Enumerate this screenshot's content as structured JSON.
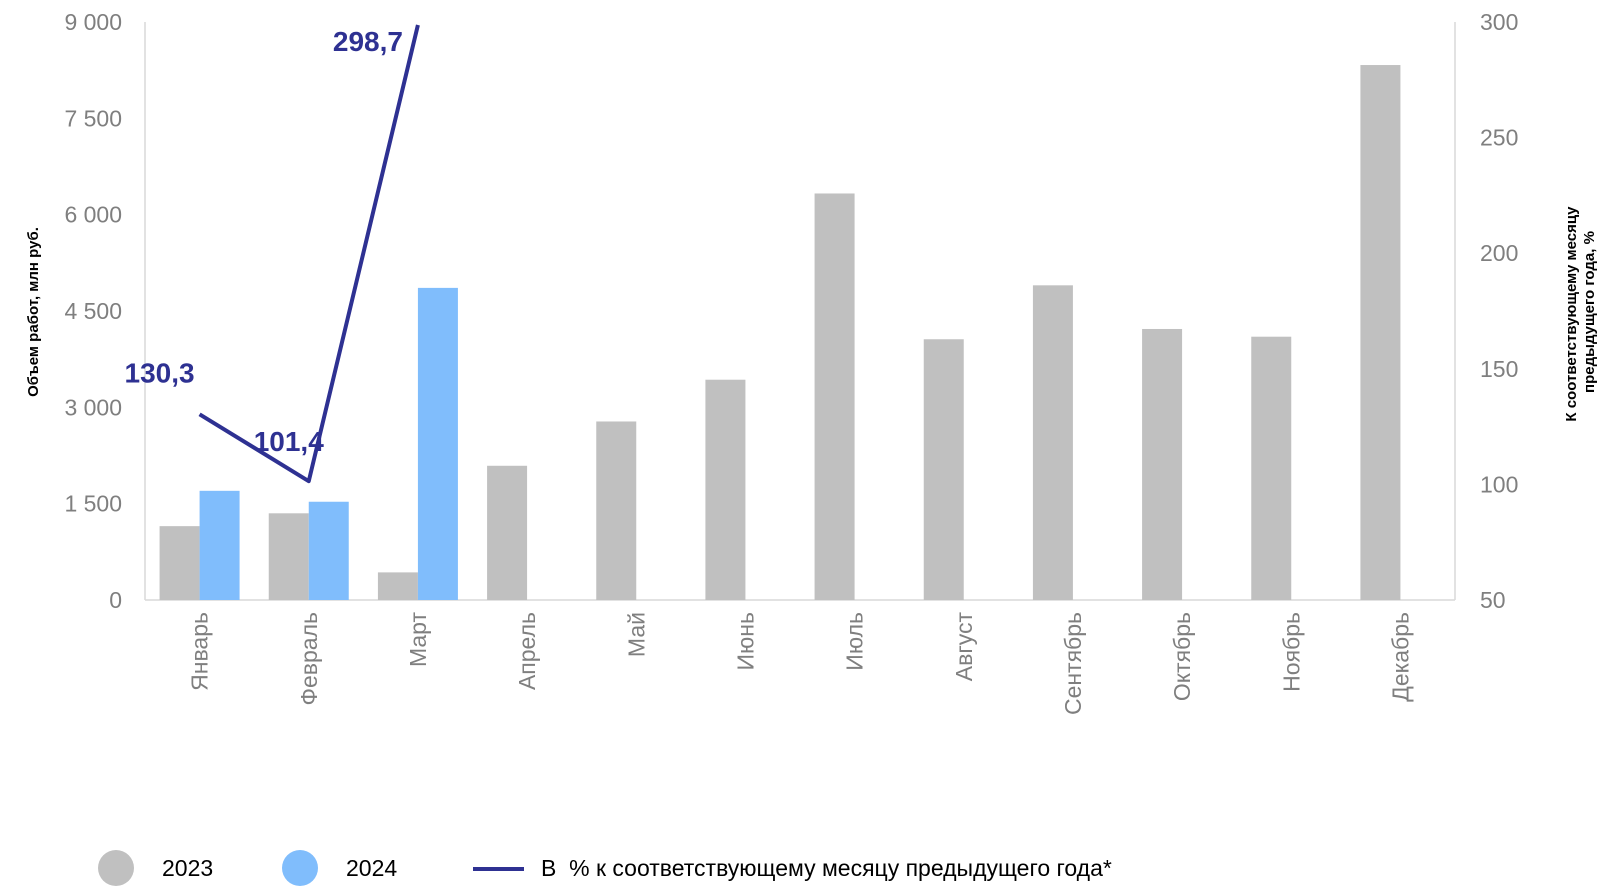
{
  "chart_data": {
    "type": "bar",
    "categories": [
      "Январь",
      "Февраль",
      "Март",
      "Апрель",
      "Май",
      "Июнь",
      "Июль",
      "Август",
      "Сентябрь",
      "Октябрь",
      "Ноябрь",
      "Декабрь"
    ],
    "series": [
      {
        "name": "2023",
        "type": "bar",
        "axis": "left",
        "color": "#c0c0c0",
        "values": [
          1150,
          1350,
          430,
          2090,
          2780,
          3430,
          6330,
          4060,
          4900,
          4220,
          4100,
          8330
        ]
      },
      {
        "name": "2024",
        "type": "bar",
        "axis": "right_none",
        "color": "#80bdfc",
        "values": [
          1700,
          1530,
          4860,
          null,
          null,
          null,
          null,
          null,
          null,
          null,
          null,
          null
        ]
      },
      {
        "name": "В  % к соответствующему месяцу предыдущего года*",
        "type": "line",
        "axis": "right",
        "color": "#2e3192",
        "values": [
          130.3,
          101.4,
          298.7,
          null,
          null,
          null,
          null,
          null,
          null,
          null,
          null,
          null
        ],
        "data_labels": [
          "130,3",
          "101,4",
          "298,7",
          null,
          null,
          null,
          null,
          null,
          null,
          null,
          null,
          null
        ]
      }
    ],
    "y_left": {
      "label": "Объем работ, млн руб.",
      "lim": [
        0,
        9000
      ],
      "ticks": [
        0,
        1500,
        3000,
        4500,
        6000,
        7500,
        9000
      ],
      "tick_labels": [
        "0",
        "1 500",
        "3 000",
        "4 500",
        "6 000",
        "7 500",
        "9 000"
      ]
    },
    "y_right": {
      "label_lines": [
        "К соответствующему месяцу",
        "предыдущего года, %"
      ],
      "lim": [
        50,
        300
      ],
      "ticks": [
        50,
        100,
        150,
        200,
        250,
        300
      ],
      "tick_labels": [
        "50",
        "100",
        "150",
        "200",
        "250",
        "300"
      ]
    },
    "grid": false,
    "legend_position": "bottom"
  }
}
